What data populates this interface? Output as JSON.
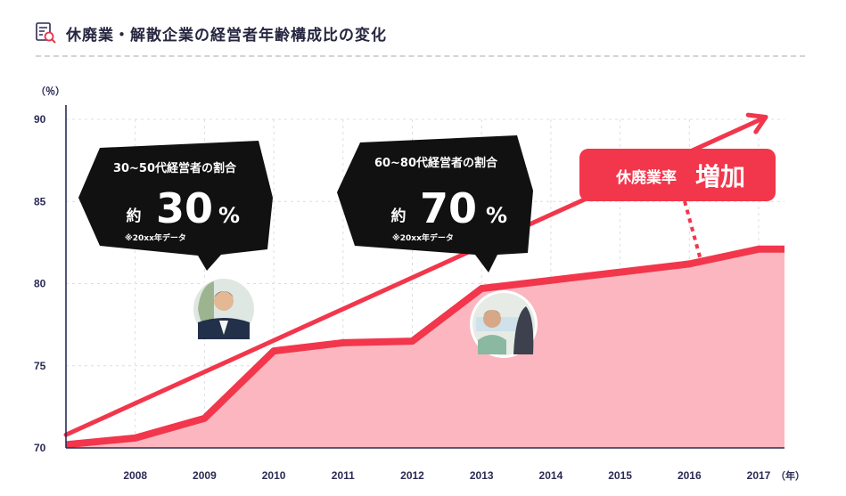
{
  "header": {
    "title": "休廃業・解散企業の経営者年齢構成比の変化",
    "icon": "document-search-icon"
  },
  "chart_data": {
    "type": "area",
    "ylabel": "（％）",
    "xlabel": "（年）",
    "ylim": [
      70,
      90
    ],
    "yticks": [
      70,
      75,
      80,
      85,
      90
    ],
    "x": [
      "2008",
      "2009",
      "2010",
      "2011",
      "2012",
      "2013",
      "2014",
      "2015",
      "2016",
      "2017"
    ],
    "series": [
      {
        "values": [
          70.6,
          71.8,
          75.9,
          76.4,
          76.5,
          79.7,
          80.2,
          80.7,
          81.2,
          82.1
        ]
      }
    ],
    "trend": {
      "x_start": 2007,
      "y_start": 70.8,
      "x_end": 2017,
      "y_end": 89.7
    },
    "grid": true,
    "colors": {
      "line": "#f2364b",
      "area": "#fbb6c0",
      "grid": "#dcdce6",
      "callout": "#111111"
    },
    "annotations": {
      "callout_left": {
        "heading": "30~50代経営者の割合",
        "prefix": "約",
        "value": "30",
        "unit": "%",
        "note": "※20xx年データ"
      },
      "callout_right": {
        "heading": "60~80代経営者の割合",
        "prefix": "約",
        "value": "70",
        "unit": "%",
        "note": "※20xx年データ"
      },
      "increase_label": {
        "text": "休廃業率",
        "emphasis": "増加"
      }
    }
  }
}
